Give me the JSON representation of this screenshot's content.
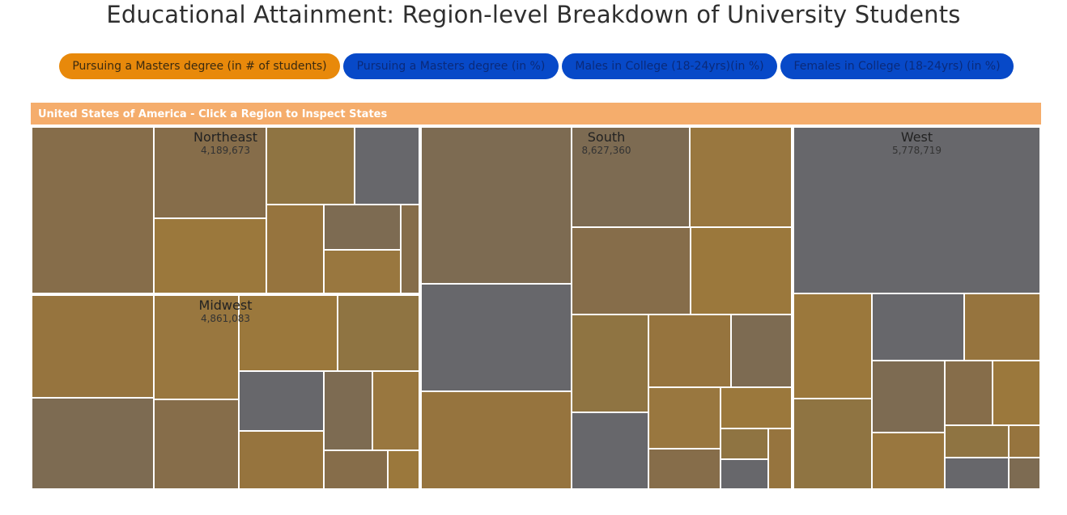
{
  "page": {
    "title": "Educational Attainment: Region-level Breakdown of University Students"
  },
  "buttons": [
    {
      "label": "Pursuing a Masters degree (in # of students)",
      "active": true
    },
    {
      "label": "Pursuing a Masters degree (in %)",
      "active": false
    },
    {
      "label": "Males in College (18-24yrs)(in %)",
      "active": false
    },
    {
      "label": "Females in College (18-24yrs) (in %)",
      "active": false
    }
  ],
  "breadcrumb": "United States of America - Click a Region to Inspect States",
  "colors": {
    "active_button": "#e8890b",
    "inactive_button": "#0749c8",
    "header_bar": "#f5ad6c",
    "cell_shades": [
      "#99773f",
      "#96743e",
      "#8f7442",
      "#866d4a",
      "#7d6b52",
      "#67676b",
      "#9b783c"
    ]
  },
  "chart_data": {
    "type": "treemap",
    "title": "",
    "regions": [
      {
        "name": "Northeast",
        "value": 4189673,
        "value_label": "4,189,673",
        "states": [
          12,
          6,
          5,
          4,
          3,
          3,
          2,
          2,
          1
        ]
      },
      {
        "name": "Midwest",
        "value": 4861083,
        "value_label": "4,861,083",
        "states": [
          10,
          9,
          7,
          6,
          6,
          5,
          4,
          4,
          3,
          3,
          2,
          1
        ]
      },
      {
        "name": "South",
        "value": 8627360,
        "value_label": "8,627,360",
        "states": [
          16,
          11,
          10,
          8,
          7,
          7,
          6,
          5,
          4,
          4,
          3,
          3,
          2,
          2,
          1,
          1,
          1
        ]
      },
      {
        "name": "West",
        "value": 5778719,
        "value_label": "5,778,719",
        "states": [
          40,
          8,
          7,
          6,
          5,
          5,
          4,
          3,
          3,
          2,
          2,
          1,
          1
        ]
      }
    ]
  }
}
